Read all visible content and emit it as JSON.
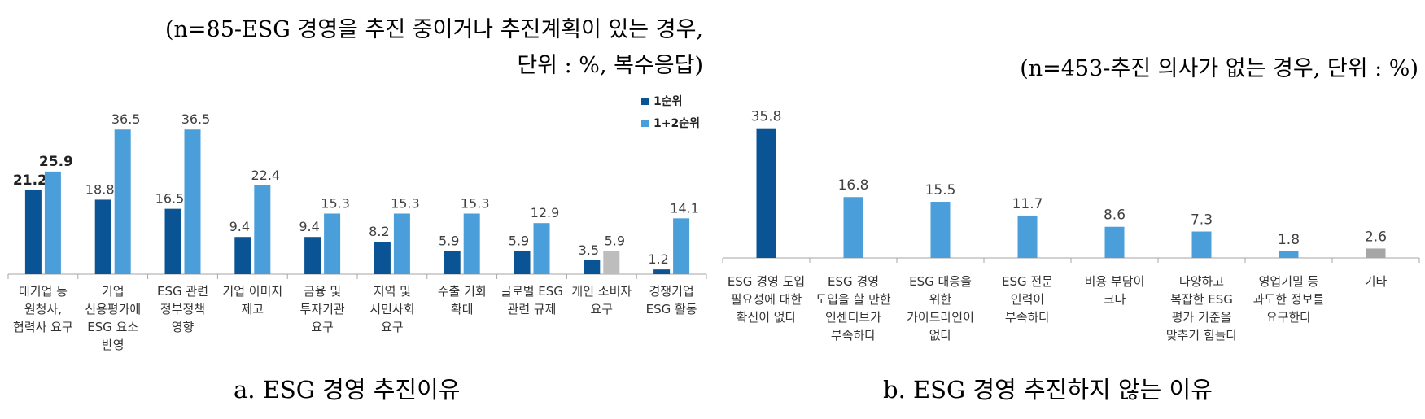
{
  "left": {
    "note_line1": "(n=85-ESG 경영을 추진 중이거나 추진계획이 있는 경우,",
    "note_line2": "단위 : %, 복수응답)",
    "caption": "a. ESG 경영 추진이유"
  },
  "right": {
    "note_line1": "(n=453-추진 의사가 없는 경우, 단위 : %)",
    "caption": "b. ESG 경영 추진하지 않는 이유"
  },
  "colors": {
    "dark": "#0a5394",
    "light": "#4a9fdb",
    "gray": "#bdbdbd",
    "text": "#404040"
  },
  "chart_data": [
    {
      "type": "bar",
      "categories": [
        [
          "대기업 등",
          "원청사,",
          "협력사 요구"
        ],
        [
          "기업",
          "신용평가에",
          "ESG 요소",
          "반영"
        ],
        [
          "ESG 관련",
          "정부정책",
          "영향"
        ],
        [
          "기업 이미지",
          "제고"
        ],
        [
          "금융 및",
          "투자기관",
          "요구"
        ],
        [
          "지역 및",
          "시민사회",
          "요구"
        ],
        [
          "수출 기회",
          "확대"
        ],
        [
          "글로벌 ESG",
          "관련 규제"
        ],
        [
          "개인 소비자",
          "요구"
        ],
        [
          "경쟁기업",
          "ESG 활동"
        ]
      ],
      "series": [
        {
          "name": "1순위",
          "values": [
            21.2,
            18.8,
            16.5,
            9.4,
            9.4,
            8.2,
            5.9,
            5.9,
            3.5,
            1.2
          ]
        },
        {
          "name": "1+2순위",
          "values": [
            25.9,
            36.5,
            36.5,
            22.4,
            15.3,
            15.3,
            15.3,
            12.9,
            5.9,
            14.1
          ]
        }
      ],
      "gray_category_index": 8,
      "bold_first_labels": true,
      "legend_position": "top-right",
      "grid": false
    },
    {
      "type": "bar",
      "categories": [
        [
          "ESG 경영 도입",
          "필요성에 대한",
          "확신이 없다"
        ],
        [
          "ESG 경영",
          "도입을 할 만한",
          "인센티브가",
          "부족하다"
        ],
        [
          "ESG 대응을",
          "위한",
          "가이드라인이",
          "없다"
        ],
        [
          "ESG 전문",
          "인력이",
          "부족하다"
        ],
        [
          "비용 부담이",
          "크다"
        ],
        [
          "다양하고",
          "복잡한 ESG",
          "평가 기준을",
          "맞추기 힘들다"
        ],
        [
          "영업기밀 등",
          "과도한 정보를",
          "요구한다"
        ],
        [
          "기타"
        ]
      ],
      "values": [
        35.8,
        16.8,
        15.5,
        11.7,
        8.6,
        7.3,
        1.8,
        2.6
      ],
      "grid": false
    }
  ]
}
